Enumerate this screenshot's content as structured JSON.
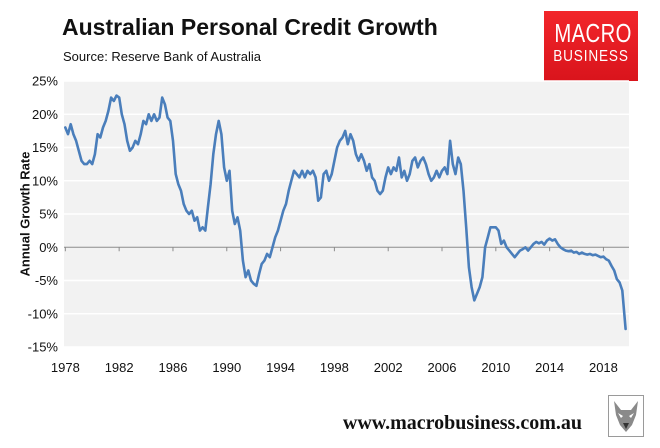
{
  "header": {
    "title": "Australian Personal Credit Growth",
    "subtitle": "Source: Reserve Bank of Australia"
  },
  "logo": {
    "line1": "MACRO",
    "line2": "BUSINESS",
    "bg_color": "#e2181f"
  },
  "footer": {
    "website": "www.macrobusiness.com.au",
    "fox_logo_icon": "fox-head-icon"
  },
  "chart_data": {
    "type": "line",
    "title": "Australian Personal Credit Growth",
    "ylabel": "Annual Growth Rate",
    "xlabel": "",
    "xlim": [
      1977.9,
      2019.9
    ],
    "ylim": [
      -15,
      25
    ],
    "x_ticks": [
      1978,
      1982,
      1986,
      1990,
      1994,
      1998,
      2002,
      2006,
      2010,
      2014,
      2018
    ],
    "y_ticks": [
      25,
      20,
      15,
      10,
      5,
      0,
      -5,
      -10,
      -15
    ],
    "y_tick_labels": [
      "25%",
      "20%",
      "15%",
      "10%",
      "5%",
      "0%",
      "-5%",
      "-10%",
      "-15%"
    ],
    "grid": "horizontal",
    "plot_background": "#f2f2f2",
    "series": [
      {
        "color": "#4a7ebb",
        "points": [
          [
            1978.0,
            18.0
          ],
          [
            1978.2,
            17.0
          ],
          [
            1978.4,
            18.5
          ],
          [
            1978.6,
            17.0
          ],
          [
            1978.8,
            16.0
          ],
          [
            1979.0,
            14.5
          ],
          [
            1979.2,
            13.0
          ],
          [
            1979.4,
            12.5
          ],
          [
            1979.6,
            12.5
          ],
          [
            1979.8,
            13.0
          ],
          [
            1980.0,
            12.5
          ],
          [
            1980.2,
            14.0
          ],
          [
            1980.4,
            17.0
          ],
          [
            1980.6,
            16.5
          ],
          [
            1980.8,
            18.0
          ],
          [
            1981.0,
            19.0
          ],
          [
            1981.2,
            20.5
          ],
          [
            1981.4,
            22.5
          ],
          [
            1981.6,
            22.0
          ],
          [
            1981.8,
            22.8
          ],
          [
            1982.0,
            22.5
          ],
          [
            1982.2,
            20.0
          ],
          [
            1982.4,
            18.5
          ],
          [
            1982.6,
            16.0
          ],
          [
            1982.8,
            14.5
          ],
          [
            1983.0,
            15.0
          ],
          [
            1983.2,
            16.0
          ],
          [
            1983.4,
            15.5
          ],
          [
            1983.6,
            17.0
          ],
          [
            1983.8,
            19.0
          ],
          [
            1984.0,
            18.5
          ],
          [
            1984.2,
            20.0
          ],
          [
            1984.4,
            19.0
          ],
          [
            1984.6,
            20.0
          ],
          [
            1984.8,
            19.0
          ],
          [
            1985.0,
            19.5
          ],
          [
            1985.2,
            22.5
          ],
          [
            1985.4,
            21.5
          ],
          [
            1985.6,
            19.5
          ],
          [
            1985.8,
            19.0
          ],
          [
            1986.0,
            16.0
          ],
          [
            1986.2,
            11.0
          ],
          [
            1986.4,
            9.5
          ],
          [
            1986.6,
            8.5
          ],
          [
            1986.8,
            6.5
          ],
          [
            1987.0,
            5.5
          ],
          [
            1987.2,
            5.0
          ],
          [
            1987.4,
            5.5
          ],
          [
            1987.6,
            4.0
          ],
          [
            1987.8,
            4.5
          ],
          [
            1988.0,
            2.5
          ],
          [
            1988.2,
            3.0
          ],
          [
            1988.4,
            2.5
          ],
          [
            1988.6,
            6.0
          ],
          [
            1988.8,
            9.5
          ],
          [
            1989.0,
            14.0
          ],
          [
            1989.2,
            17.0
          ],
          [
            1989.4,
            19.0
          ],
          [
            1989.6,
            17.0
          ],
          [
            1989.8,
            12.0
          ],
          [
            1990.0,
            10.0
          ],
          [
            1990.2,
            11.5
          ],
          [
            1990.4,
            5.5
          ],
          [
            1990.6,
            3.5
          ],
          [
            1990.8,
            4.5
          ],
          [
            1991.0,
            2.5
          ],
          [
            1991.2,
            -2.0
          ],
          [
            1991.4,
            -4.5
          ],
          [
            1991.6,
            -3.5
          ],
          [
            1991.8,
            -5.0
          ],
          [
            1992.0,
            -5.5
          ],
          [
            1992.2,
            -5.8
          ],
          [
            1992.4,
            -4.0
          ],
          [
            1992.6,
            -2.5
          ],
          [
            1992.8,
            -2.0
          ],
          [
            1993.0,
            -1.0
          ],
          [
            1993.2,
            -1.5
          ],
          [
            1993.4,
            0.0
          ],
          [
            1993.6,
            1.5
          ],
          [
            1993.8,
            2.5
          ],
          [
            1994.0,
            4.0
          ],
          [
            1994.2,
            5.5
          ],
          [
            1994.4,
            6.5
          ],
          [
            1994.6,
            8.5
          ],
          [
            1994.8,
            10.0
          ],
          [
            1995.0,
            11.5
          ],
          [
            1995.2,
            11.0
          ],
          [
            1995.4,
            10.5
          ],
          [
            1995.6,
            11.5
          ],
          [
            1995.8,
            10.5
          ],
          [
            1996.0,
            11.5
          ],
          [
            1996.2,
            11.0
          ],
          [
            1996.4,
            11.5
          ],
          [
            1996.6,
            10.5
          ],
          [
            1996.8,
            7.0
          ],
          [
            1997.0,
            7.5
          ],
          [
            1997.2,
            11.0
          ],
          [
            1997.4,
            11.5
          ],
          [
            1997.6,
            10.0
          ],
          [
            1997.8,
            11.0
          ],
          [
            1998.0,
            13.0
          ],
          [
            1998.2,
            15.0
          ],
          [
            1998.4,
            16.0
          ],
          [
            1998.6,
            16.5
          ],
          [
            1998.8,
            17.5
          ],
          [
            1999.0,
            15.5
          ],
          [
            1999.2,
            17.0
          ],
          [
            1999.4,
            16.0
          ],
          [
            1999.6,
            14.0
          ],
          [
            1999.8,
            13.0
          ],
          [
            2000.0,
            14.0
          ],
          [
            2000.2,
            13.0
          ],
          [
            2000.4,
            11.5
          ],
          [
            2000.6,
            12.5
          ],
          [
            2000.8,
            10.5
          ],
          [
            2001.0,
            10.0
          ],
          [
            2001.2,
            8.5
          ],
          [
            2001.4,
            8.0
          ],
          [
            2001.6,
            8.5
          ],
          [
            2001.8,
            10.5
          ],
          [
            2002.0,
            12.0
          ],
          [
            2002.2,
            11.0
          ],
          [
            2002.4,
            12.0
          ],
          [
            2002.6,
            11.5
          ],
          [
            2002.8,
            13.5
          ],
          [
            2003.0,
            10.5
          ],
          [
            2003.2,
            11.5
          ],
          [
            2003.4,
            10.0
          ],
          [
            2003.6,
            11.0
          ],
          [
            2003.8,
            13.0
          ],
          [
            2004.0,
            13.5
          ],
          [
            2004.2,
            12.0
          ],
          [
            2004.4,
            13.0
          ],
          [
            2004.6,
            13.5
          ],
          [
            2004.8,
            12.5
          ],
          [
            2005.0,
            11.0
          ],
          [
            2005.2,
            10.0
          ],
          [
            2005.4,
            10.5
          ],
          [
            2005.6,
            11.5
          ],
          [
            2005.8,
            10.5
          ],
          [
            2006.0,
            11.5
          ],
          [
            2006.2,
            12.0
          ],
          [
            2006.4,
            11.0
          ],
          [
            2006.6,
            16.0
          ],
          [
            2006.8,
            12.5
          ],
          [
            2007.0,
            11.0
          ],
          [
            2007.2,
            13.5
          ],
          [
            2007.4,
            12.5
          ],
          [
            2007.6,
            8.5
          ],
          [
            2007.8,
            3.0
          ],
          [
            2008.0,
            -3.0
          ],
          [
            2008.2,
            -6.0
          ],
          [
            2008.4,
            -8.0
          ],
          [
            2008.6,
            -7.0
          ],
          [
            2008.8,
            -6.0
          ],
          [
            2009.0,
            -4.5
          ],
          [
            2009.2,
            0.0
          ],
          [
            2009.4,
            1.5
          ],
          [
            2009.6,
            3.0
          ],
          [
            2009.8,
            3.0
          ],
          [
            2010.0,
            3.0
          ],
          [
            2010.2,
            2.5
          ],
          [
            2010.4,
            0.5
          ],
          [
            2010.6,
            1.0
          ],
          [
            2010.8,
            0.0
          ],
          [
            2011.0,
            -0.5
          ],
          [
            2011.2,
            -1.0
          ],
          [
            2011.4,
            -1.5
          ],
          [
            2011.6,
            -1.0
          ],
          [
            2011.8,
            -0.5
          ],
          [
            2012.0,
            -0.3
          ],
          [
            2012.2,
            0.0
          ],
          [
            2012.4,
            -0.5
          ],
          [
            2012.6,
            0.0
          ],
          [
            2012.8,
            0.5
          ],
          [
            2013.0,
            0.8
          ],
          [
            2013.2,
            0.6
          ],
          [
            2013.4,
            0.8
          ],
          [
            2013.6,
            0.4
          ],
          [
            2013.8,
            1.0
          ],
          [
            2014.0,
            1.3
          ],
          [
            2014.2,
            1.0
          ],
          [
            2014.4,
            1.2
          ],
          [
            2014.6,
            0.5
          ],
          [
            2014.8,
            0.0
          ],
          [
            2015.0,
            -0.3
          ],
          [
            2015.2,
            -0.5
          ],
          [
            2015.4,
            -0.6
          ],
          [
            2015.6,
            -0.5
          ],
          [
            2015.8,
            -0.8
          ],
          [
            2016.0,
            -0.7
          ],
          [
            2016.2,
            -1.0
          ],
          [
            2016.4,
            -0.8
          ],
          [
            2016.6,
            -1.0
          ],
          [
            2016.8,
            -1.1
          ],
          [
            2017.0,
            -1.0
          ],
          [
            2017.2,
            -1.2
          ],
          [
            2017.4,
            -1.1
          ],
          [
            2017.6,
            -1.3
          ],
          [
            2017.8,
            -1.5
          ],
          [
            2018.0,
            -1.4
          ],
          [
            2018.2,
            -1.8
          ],
          [
            2018.4,
            -2.0
          ],
          [
            2018.6,
            -2.8
          ],
          [
            2018.8,
            -3.5
          ],
          [
            2019.0,
            -4.8
          ],
          [
            2019.2,
            -5.3
          ],
          [
            2019.4,
            -6.5
          ],
          [
            2019.55,
            -10.0
          ],
          [
            2019.65,
            -12.3
          ]
        ]
      }
    ]
  }
}
